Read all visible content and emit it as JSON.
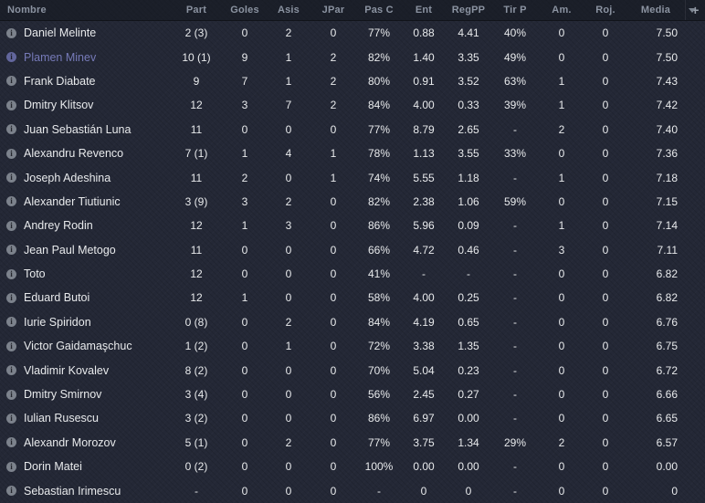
{
  "colors": {
    "background": "#242836",
    "header_background": "#1d212b",
    "body_text": "#e8eaec",
    "header_text": "#8b93a1",
    "highlight_player": "#767ab8",
    "icon_grey": "#7c828c"
  },
  "header": {
    "sort_icon": "sort-descending-arrow",
    "add_column_label": "+"
  },
  "table": {
    "columns": [
      {
        "id": "nombre",
        "label": "Nombre"
      },
      {
        "id": "part",
        "label": "Part"
      },
      {
        "id": "goles",
        "label": "Goles"
      },
      {
        "id": "asis",
        "label": "Asis"
      },
      {
        "id": "jpar",
        "label": "JPar"
      },
      {
        "id": "pasc",
        "label": "Pas C"
      },
      {
        "id": "ent",
        "label": "Ent"
      },
      {
        "id": "regpp",
        "label": "RegPP"
      },
      {
        "id": "tirp",
        "label": "Tir P"
      },
      {
        "id": "am",
        "label": "Am."
      },
      {
        "id": "roj",
        "label": "Roj."
      },
      {
        "id": "media",
        "label": "Media"
      }
    ],
    "rows": [
      {
        "name": "Daniel Melinte",
        "highlighted": false,
        "values": [
          "2 (3)",
          "0",
          "2",
          "0",
          "77%",
          "0.88",
          "4.41",
          "40%",
          "0",
          "0",
          "7.50"
        ]
      },
      {
        "name": "Plamen Minev",
        "highlighted": true,
        "values": [
          "10 (1)",
          "9",
          "1",
          "2",
          "82%",
          "1.40",
          "3.35",
          "49%",
          "0",
          "0",
          "7.50"
        ]
      },
      {
        "name": "Frank Diabate",
        "highlighted": false,
        "values": [
          "9",
          "7",
          "1",
          "2",
          "80%",
          "0.91",
          "3.52",
          "63%",
          "1",
          "0",
          "7.43"
        ]
      },
      {
        "name": "Dmitry Klitsov",
        "highlighted": false,
        "values": [
          "12",
          "3",
          "7",
          "2",
          "84%",
          "4.00",
          "0.33",
          "39%",
          "1",
          "0",
          "7.42"
        ]
      },
      {
        "name": "Juan Sebastián Luna",
        "highlighted": false,
        "values": [
          "11",
          "0",
          "0",
          "0",
          "77%",
          "8.79",
          "2.65",
          "-",
          "2",
          "0",
          "7.40"
        ]
      },
      {
        "name": "Alexandru Revenco",
        "highlighted": false,
        "values": [
          "7 (1)",
          "1",
          "4",
          "1",
          "78%",
          "1.13",
          "3.55",
          "33%",
          "0",
          "0",
          "7.36"
        ]
      },
      {
        "name": "Joseph Adeshina",
        "highlighted": false,
        "values": [
          "11",
          "2",
          "0",
          "1",
          "74%",
          "5.55",
          "1.18",
          "-",
          "1",
          "0",
          "7.18"
        ]
      },
      {
        "name": "Alexander Tiutiunic",
        "highlighted": false,
        "values": [
          "3 (9)",
          "3",
          "2",
          "0",
          "82%",
          "2.38",
          "1.06",
          "59%",
          "0",
          "0",
          "7.15"
        ]
      },
      {
        "name": "Andrey Rodin",
        "highlighted": false,
        "values": [
          "12",
          "1",
          "3",
          "0",
          "86%",
          "5.96",
          "0.09",
          "-",
          "1",
          "0",
          "7.14"
        ]
      },
      {
        "name": "Jean Paul Metogo",
        "highlighted": false,
        "values": [
          "11",
          "0",
          "0",
          "0",
          "66%",
          "4.72",
          "0.46",
          "-",
          "3",
          "0",
          "7.11"
        ]
      },
      {
        "name": "Toto",
        "highlighted": false,
        "values": [
          "12",
          "0",
          "0",
          "0",
          "41%",
          "-",
          "-",
          "-",
          "0",
          "0",
          "6.82"
        ]
      },
      {
        "name": "Eduard Butoi",
        "highlighted": false,
        "values": [
          "12",
          "1",
          "0",
          "0",
          "58%",
          "4.00",
          "0.25",
          "-",
          "0",
          "0",
          "6.82"
        ]
      },
      {
        "name": "Iurie Spiridon",
        "highlighted": false,
        "values": [
          "0 (8)",
          "0",
          "2",
          "0",
          "84%",
          "4.19",
          "0.65",
          "-",
          "0",
          "0",
          "6.76"
        ]
      },
      {
        "name": "Victor Gaidamaşchuc",
        "highlighted": false,
        "values": [
          "1 (2)",
          "0",
          "1",
          "0",
          "72%",
          "3.38",
          "1.35",
          "-",
          "0",
          "0",
          "6.75"
        ]
      },
      {
        "name": "Vladimir Kovalev",
        "highlighted": false,
        "values": [
          "8 (2)",
          "0",
          "0",
          "0",
          "70%",
          "5.04",
          "0.23",
          "-",
          "0",
          "0",
          "6.72"
        ]
      },
      {
        "name": "Dmitry Smirnov",
        "highlighted": false,
        "values": [
          "3 (4)",
          "0",
          "0",
          "0",
          "56%",
          "2.45",
          "0.27",
          "-",
          "0",
          "0",
          "6.66"
        ]
      },
      {
        "name": "Iulian Rusescu",
        "highlighted": false,
        "values": [
          "3 (2)",
          "0",
          "0",
          "0",
          "86%",
          "6.97",
          "0.00",
          "-",
          "0",
          "0",
          "6.65"
        ]
      },
      {
        "name": "Alexandr Morozov",
        "highlighted": false,
        "values": [
          "5 (1)",
          "0",
          "2",
          "0",
          "77%",
          "3.75",
          "1.34",
          "29%",
          "2",
          "0",
          "6.57"
        ]
      },
      {
        "name": "Dorin Matei",
        "highlighted": false,
        "values": [
          "0 (2)",
          "0",
          "0",
          "0",
          "100%",
          "0.00",
          "0.00",
          "-",
          "0",
          "0",
          "0.00"
        ]
      },
      {
        "name": "Sebastian Irimescu",
        "highlighted": false,
        "values": [
          "-",
          "0",
          "0",
          "0",
          "-",
          "0",
          "0",
          "-",
          "0",
          "0",
          "0"
        ]
      }
    ]
  }
}
